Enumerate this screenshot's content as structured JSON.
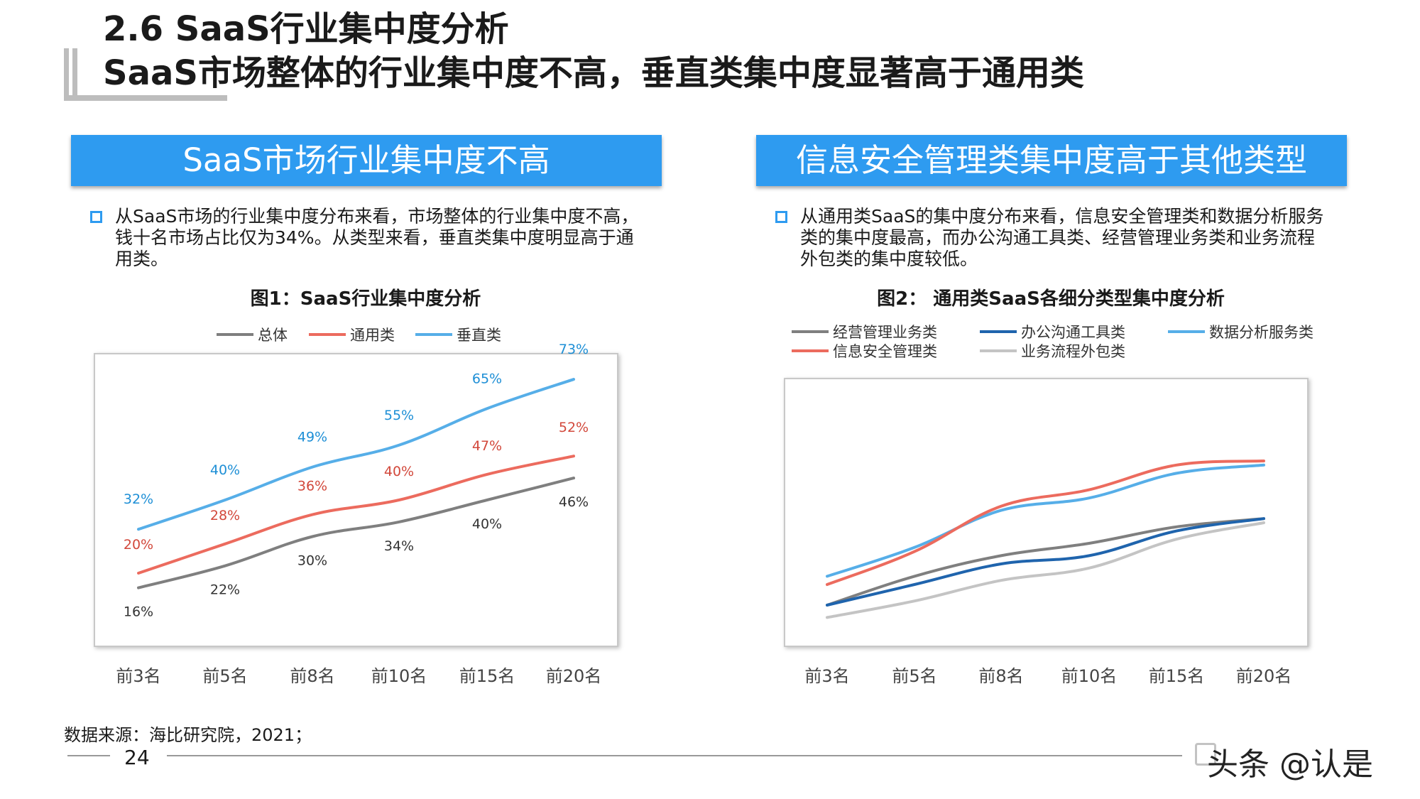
{
  "title": {
    "line1": "2.6 SaaS行业集中度分析",
    "line2": "SaaS市场整体的行业集中度不高，垂直类集中度显著高于通用类"
  },
  "left_panel": {
    "header": "SaaS市场行业集中度不高",
    "bullet": [
      "从SaaS市场的行业集中度分布来看，市场整体的行业集中度不高，",
      "钱十名市场占比仅为34%。从类型来看，垂直类集中度明显高于通",
      "用类。"
    ],
    "chart_title": "图1：SaaS行业集中度分析"
  },
  "right_panel": {
    "header": "信息安全管理类集中度高于其他类型",
    "bullet": [
      "从通用类SaaS的集中度分布来看，信息安全管理类和数据分析服务",
      "类的集中度最高，而办公沟通工具类、经营管理业务类和业务流程",
      "外包类的集中度较低。"
    ],
    "chart_title": "图2： 通用类SaaS各细分类型集中度分析"
  },
  "chart_data": [
    {
      "type": "line",
      "title": "图1：SaaS行业集中度分析",
      "categories": [
        "前3名",
        "前5名",
        "前8名",
        "前10名",
        "前15名",
        "前20名"
      ],
      "legend_position": "top",
      "grid": false,
      "ylim": [
        0,
        80
      ],
      "series": [
        {
          "name": "总体",
          "color": "#7f7f7f",
          "values": [
            16,
            22,
            30,
            34,
            40,
            46
          ],
          "labels": [
            "16%",
            "22%",
            "30%",
            "34%",
            "40%",
            "46%"
          ]
        },
        {
          "name": "通用类",
          "color": "#ec6b5e",
          "values": [
            20,
            28,
            36,
            40,
            47,
            52
          ],
          "labels": [
            "20%",
            "28%",
            "36%",
            "40%",
            "47%",
            "52%"
          ]
        },
        {
          "name": "垂直类",
          "color": "#56aee8",
          "values": [
            32,
            40,
            49,
            55,
            65,
            73
          ],
          "labels": [
            "32%",
            "40%",
            "49%",
            "55%",
            "65%",
            "73%"
          ]
        }
      ]
    },
    {
      "type": "line",
      "title": "图2： 通用类SaaS各细分类型集中度分析",
      "categories": [
        "前3名",
        "前5名",
        "前8名",
        "前10名",
        "前15名",
        "前20名"
      ],
      "legend_position": "top",
      "grid": false,
      "ylim": [
        10,
        75
      ],
      "series": [
        {
          "name": "经营管理业务类",
          "color": "#7f7f7f",
          "values": [
            20,
            27,
            32,
            35,
            39,
            41
          ]
        },
        {
          "name": "办公沟通工具类",
          "color": "#1f64ad",
          "values": [
            20,
            25,
            30,
            32,
            38,
            41
          ]
        },
        {
          "name": "数据分析服务类",
          "color": "#56aee8",
          "values": [
            27,
            34,
            43,
            46,
            52,
            54
          ]
        },
        {
          "name": "信息安全管理类",
          "color": "#ec6b5e",
          "values": [
            25,
            33,
            44,
            48,
            54,
            55
          ]
        },
        {
          "name": "业务流程外包类",
          "color": "#c4c4c4",
          "values": [
            17,
            21,
            26,
            29,
            36,
            40
          ]
        }
      ]
    }
  ],
  "source": "数据来源：海比研究院，2021；",
  "page_number": "24",
  "brand": "头条 @认是"
}
